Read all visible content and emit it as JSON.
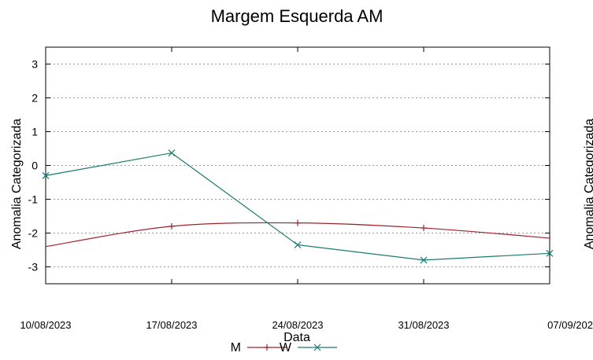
{
  "chart_data": {
    "type": "line",
    "title": "Margem Esquerda AM",
    "xlabel": "Data",
    "ylabel": "Anomalia Categorizada",
    "right_ylabel_fragment": "Anomalia Categorizada",
    "x_ticks": [
      "10/08/2023",
      "17/08/2023",
      "24/08/2023",
      "31/08/2023",
      "07/09/202"
    ],
    "y_ticks": [
      "3",
      "2",
      "1",
      "0",
      "-1",
      "-2",
      "-3"
    ],
    "y_tick_values": [
      3,
      2,
      1,
      0,
      -1,
      -2,
      -3
    ],
    "ylim": [
      -3.5,
      3.5
    ],
    "x_dates": [
      "2023-08-10",
      "2023-08-17",
      "2023-08-24",
      "2023-08-31",
      "2023-09-07"
    ],
    "grid": true,
    "legend_position": "bottom-center",
    "series": [
      {
        "name": "M",
        "color": "#a0202a",
        "marker": "plus",
        "x": [
          "2023-08-10",
          "2023-08-17",
          "2023-08-24",
          "2023-08-31",
          "2023-09-07"
        ],
        "values": [
          -2.4,
          -1.8,
          -1.7,
          -1.85,
          -2.15
        ],
        "marker_shown": [
          false,
          true,
          true,
          true,
          false
        ]
      },
      {
        "name": "W",
        "color": "#1a7a72",
        "marker": "x",
        "x": [
          "2023-08-10",
          "2023-08-17",
          "2023-08-24",
          "2023-08-31",
          "2023-09-07"
        ],
        "values": [
          -0.3,
          0.37,
          -2.35,
          -2.8,
          -2.6
        ],
        "marker_shown": [
          true,
          true,
          true,
          true,
          true
        ]
      }
    ]
  }
}
